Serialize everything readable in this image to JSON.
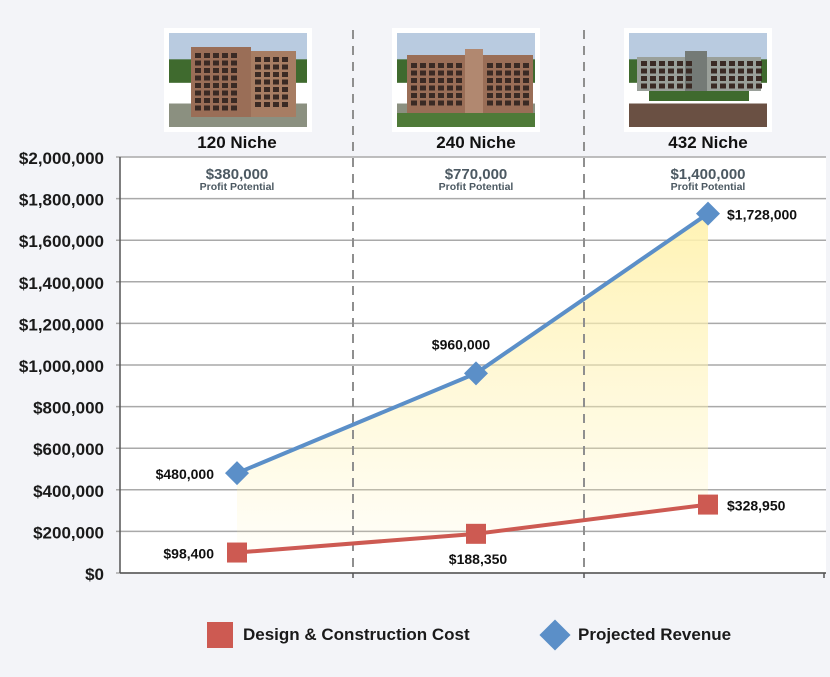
{
  "chart_data": {
    "type": "line",
    "categories": [
      "120 Niche",
      "240 Niche",
      "432 Niche"
    ],
    "profit_values": [
      "$380,000",
      "$770,000",
      "$1,400,000"
    ],
    "profit_caption": "Profit Potential",
    "ylim": [
      0,
      2000000
    ],
    "yticks": [
      "$0",
      "$200,000",
      "$400,000",
      "$600,000",
      "$800,000",
      "$1,000,000",
      "$1,200,000",
      "$1,400,000",
      "$1,600,000",
      "$1,800,000",
      "$2,000,000"
    ],
    "grid": true,
    "legend_position": "bottom",
    "series": [
      {
        "name": "Design & Construction Cost",
        "values": [
          98400,
          188350,
          328950
        ],
        "labels": [
          "$98,400",
          "$188,350",
          "$328,950"
        ],
        "color": "#cd5a52",
        "marker": "square"
      },
      {
        "name": "Projected Revenue",
        "values": [
          480000,
          960000,
          1728000
        ],
        "labels": [
          "$480,000",
          "$960,000",
          "$1,728,000"
        ],
        "color": "#5b8fc8",
        "marker": "diamond"
      }
    ],
    "fill_between": {
      "color": "#fff2b0"
    }
  },
  "images": [
    {
      "name": "columbarium-120-niche-photo"
    },
    {
      "name": "columbarium-240-niche-photo"
    },
    {
      "name": "columbarium-432-niche-photo"
    }
  ]
}
